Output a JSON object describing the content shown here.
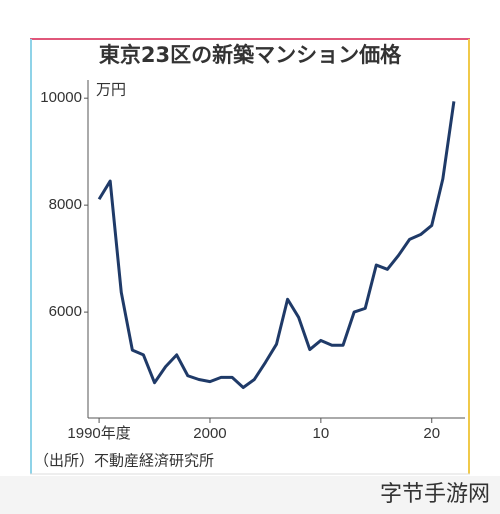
{
  "chart_data": {
    "type": "line",
    "title": "東京23区の新築マンション価格",
    "y_unit": "万円",
    "source": "（出所）不動産経済研究所",
    "x": [
      1990,
      1991,
      1992,
      1993,
      1994,
      1995,
      1996,
      1997,
      1998,
      1999,
      2000,
      2001,
      2002,
      2003,
      2004,
      2005,
      2006,
      2007,
      2008,
      2009,
      2010,
      2011,
      2012,
      2013,
      2014,
      2015,
      2016,
      2017,
      2018,
      2019,
      2020,
      2021,
      2022
    ],
    "series": [
      {
        "name": "東京23区",
        "color": "#1f3a68",
        "values": [
          8110,
          8450,
          6370,
          5290,
          5200,
          4680,
          4980,
          5200,
          4810,
          4740,
          4700,
          4780,
          4780,
          4590,
          4740,
          5060,
          5400,
          6240,
          5900,
          5300,
          5470,
          5380,
          5380,
          6000,
          6070,
          6880,
          6800,
          7060,
          7360,
          7450,
          7620,
          8490,
          9940
        ]
      }
    ],
    "xlim": [
      1989,
      2023
    ],
    "xticks": [
      {
        "value": 1990,
        "label": "1990年度"
      },
      2000,
      {
        "value": 2010,
        "label": "10"
      },
      {
        "value": 2020,
        "label": "20"
      }
    ],
    "ylim": [
      4020,
      10340
    ],
    "yticks": [
      6000,
      8000,
      10000
    ],
    "grid": false
  },
  "watermark": "字节手游网"
}
